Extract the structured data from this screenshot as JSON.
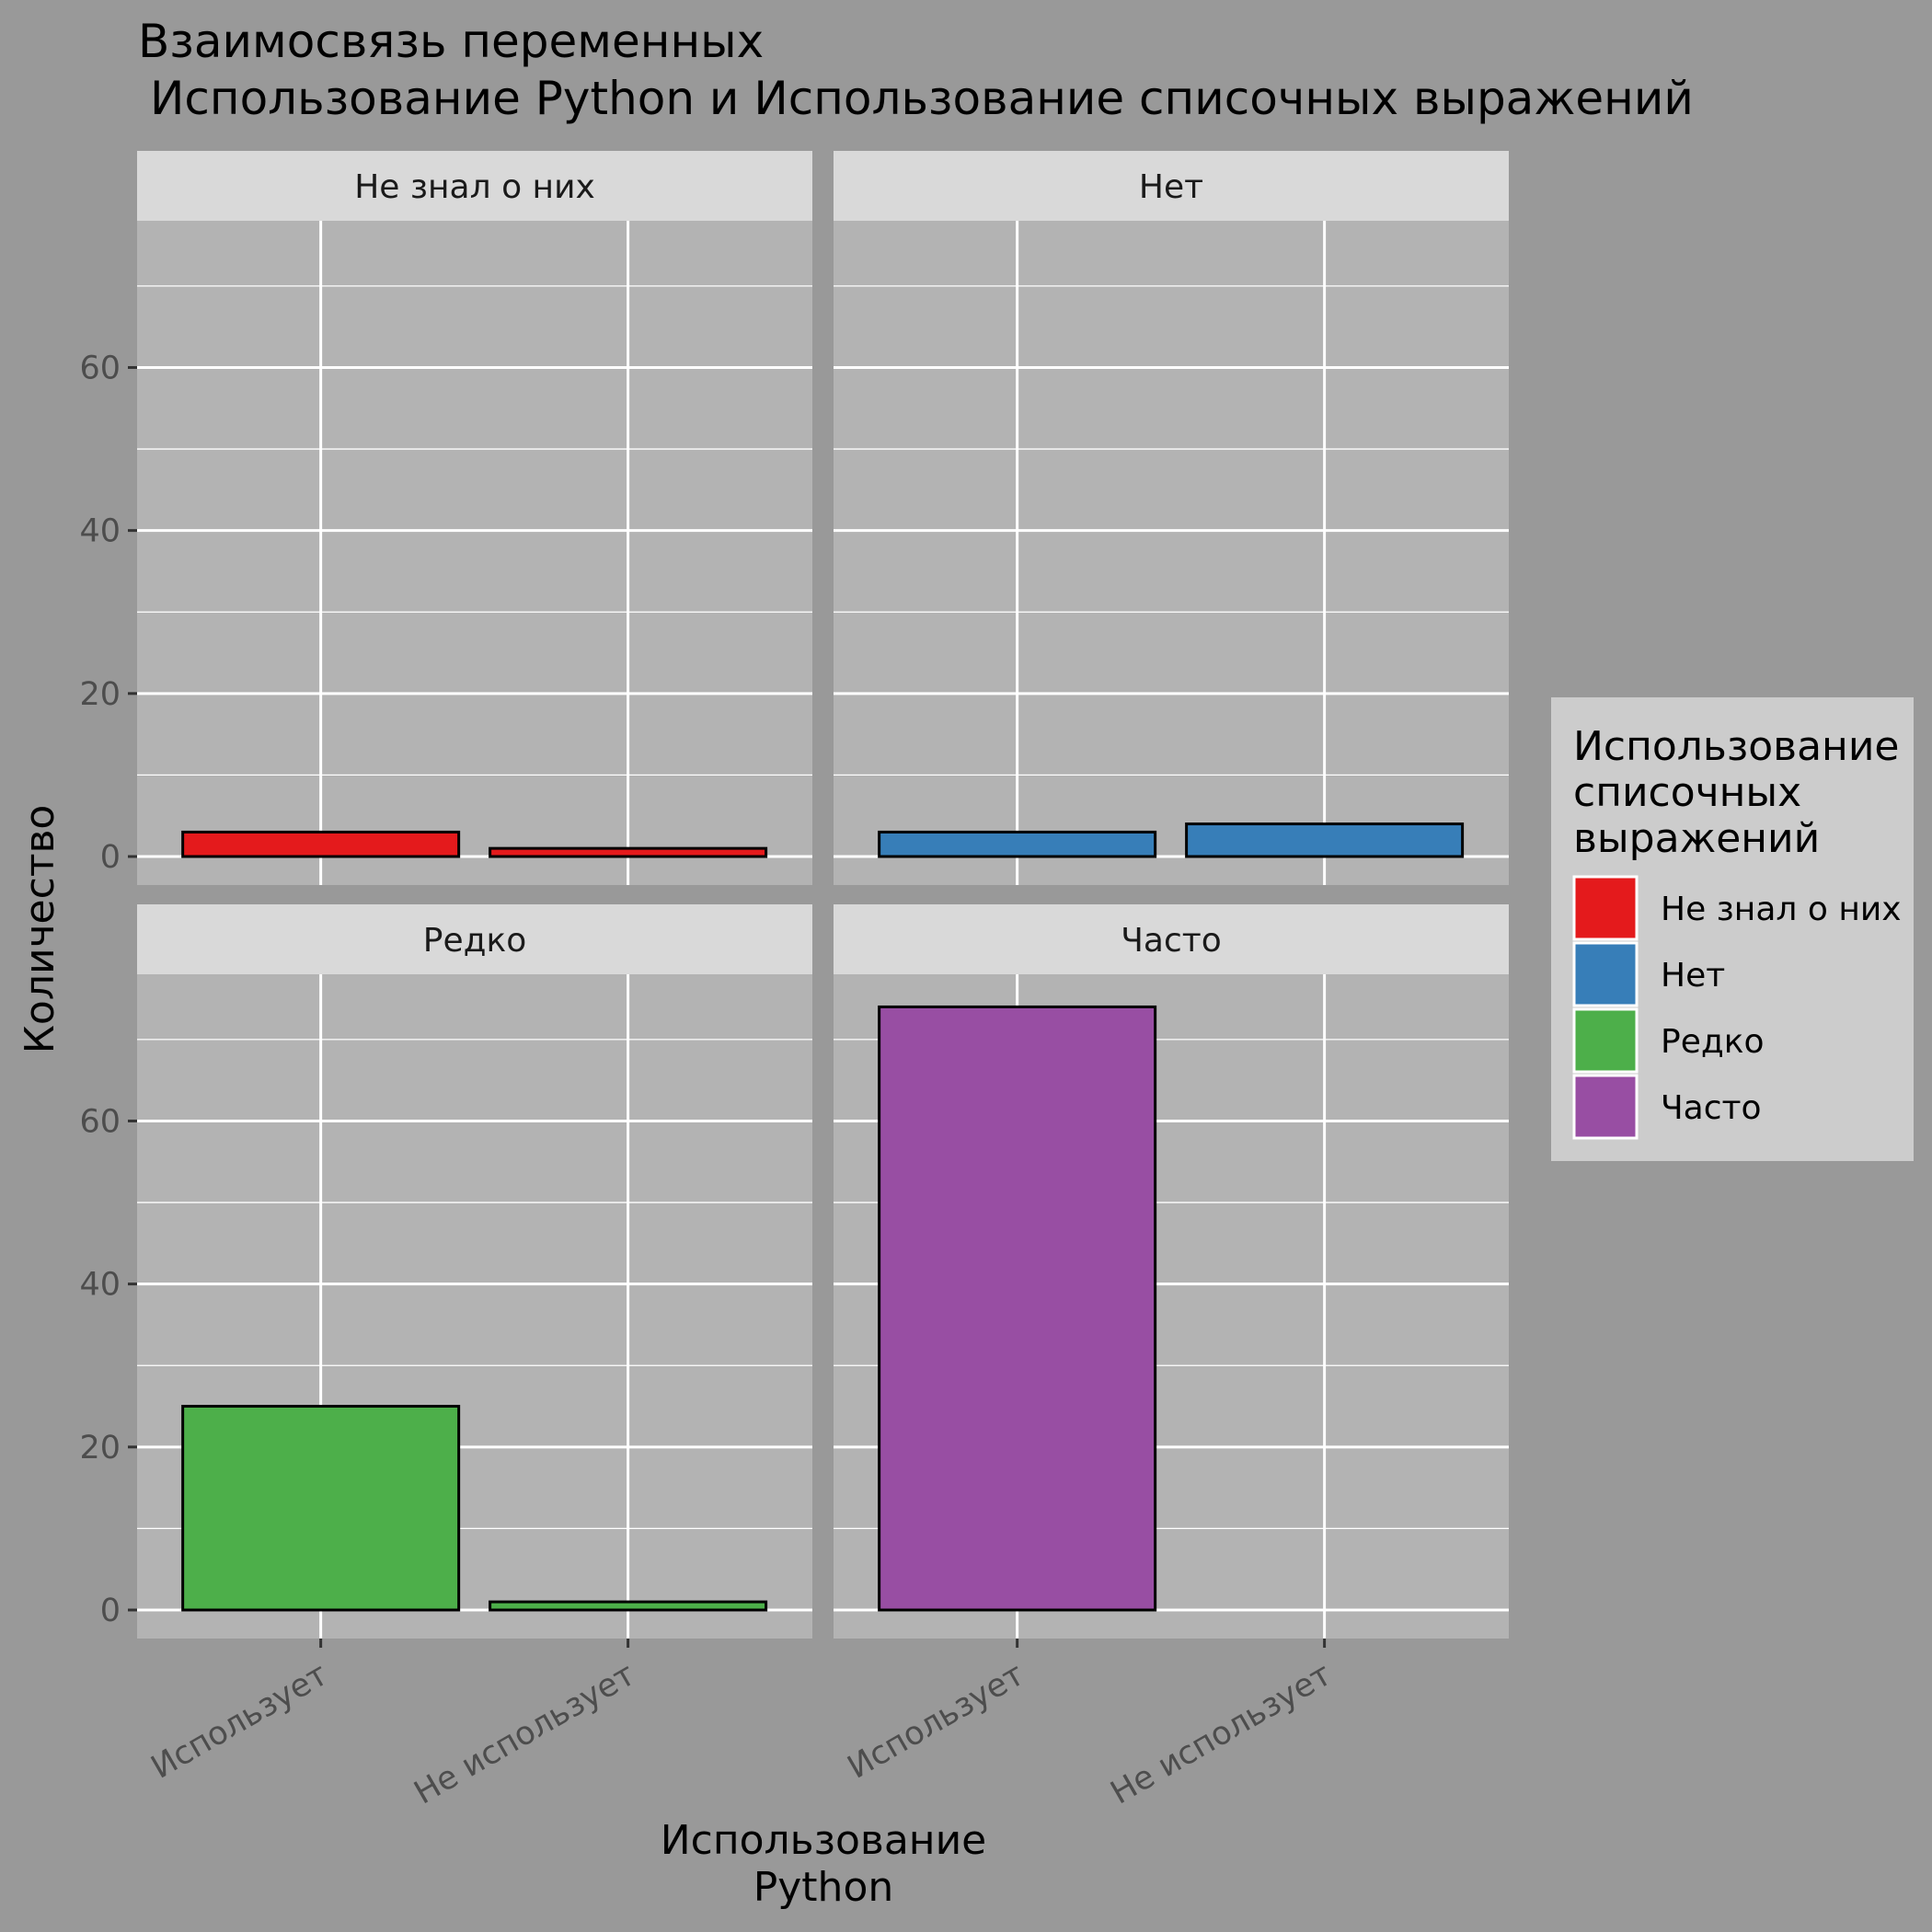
{
  "chart_data": {
    "type": "bar",
    "title_line1": "Взаимосвязь переменных",
    "title_line2": "Использование Python и Использование списочных выражений",
    "xlabel_line1": "Использование",
    "xlabel_line2": "Python",
    "ylabel": "Количество",
    "categories": [
      "Использует",
      "Не использует"
    ],
    "y_ticks": [
      0,
      20,
      40,
      60
    ],
    "ylim": [
      -3.5,
      78
    ],
    "grid": true,
    "legend": {
      "title_lines": [
        "Использование",
        "списочных",
        "выражений"
      ],
      "placement": "right",
      "items": [
        {
          "label": "Не знал о них",
          "color": "#E41A1C"
        },
        {
          "label": "Нет",
          "color": "#377EB8"
        },
        {
          "label": "Редко",
          "color": "#4DAF4A"
        },
        {
          "label": "Часто",
          "color": "#984EA3"
        }
      ]
    },
    "panels": [
      {
        "name": "Не знал о них",
        "color": "#E41A1C",
        "values": [
          3,
          1
        ]
      },
      {
        "name": "Нет",
        "color": "#377EB8",
        "values": [
          3,
          4
        ]
      },
      {
        "name": "Редко",
        "color": "#4DAF4A",
        "values": [
          25,
          1
        ]
      },
      {
        "name": "Часто",
        "color": "#984EA3",
        "values": [
          74,
          0
        ]
      }
    ]
  }
}
